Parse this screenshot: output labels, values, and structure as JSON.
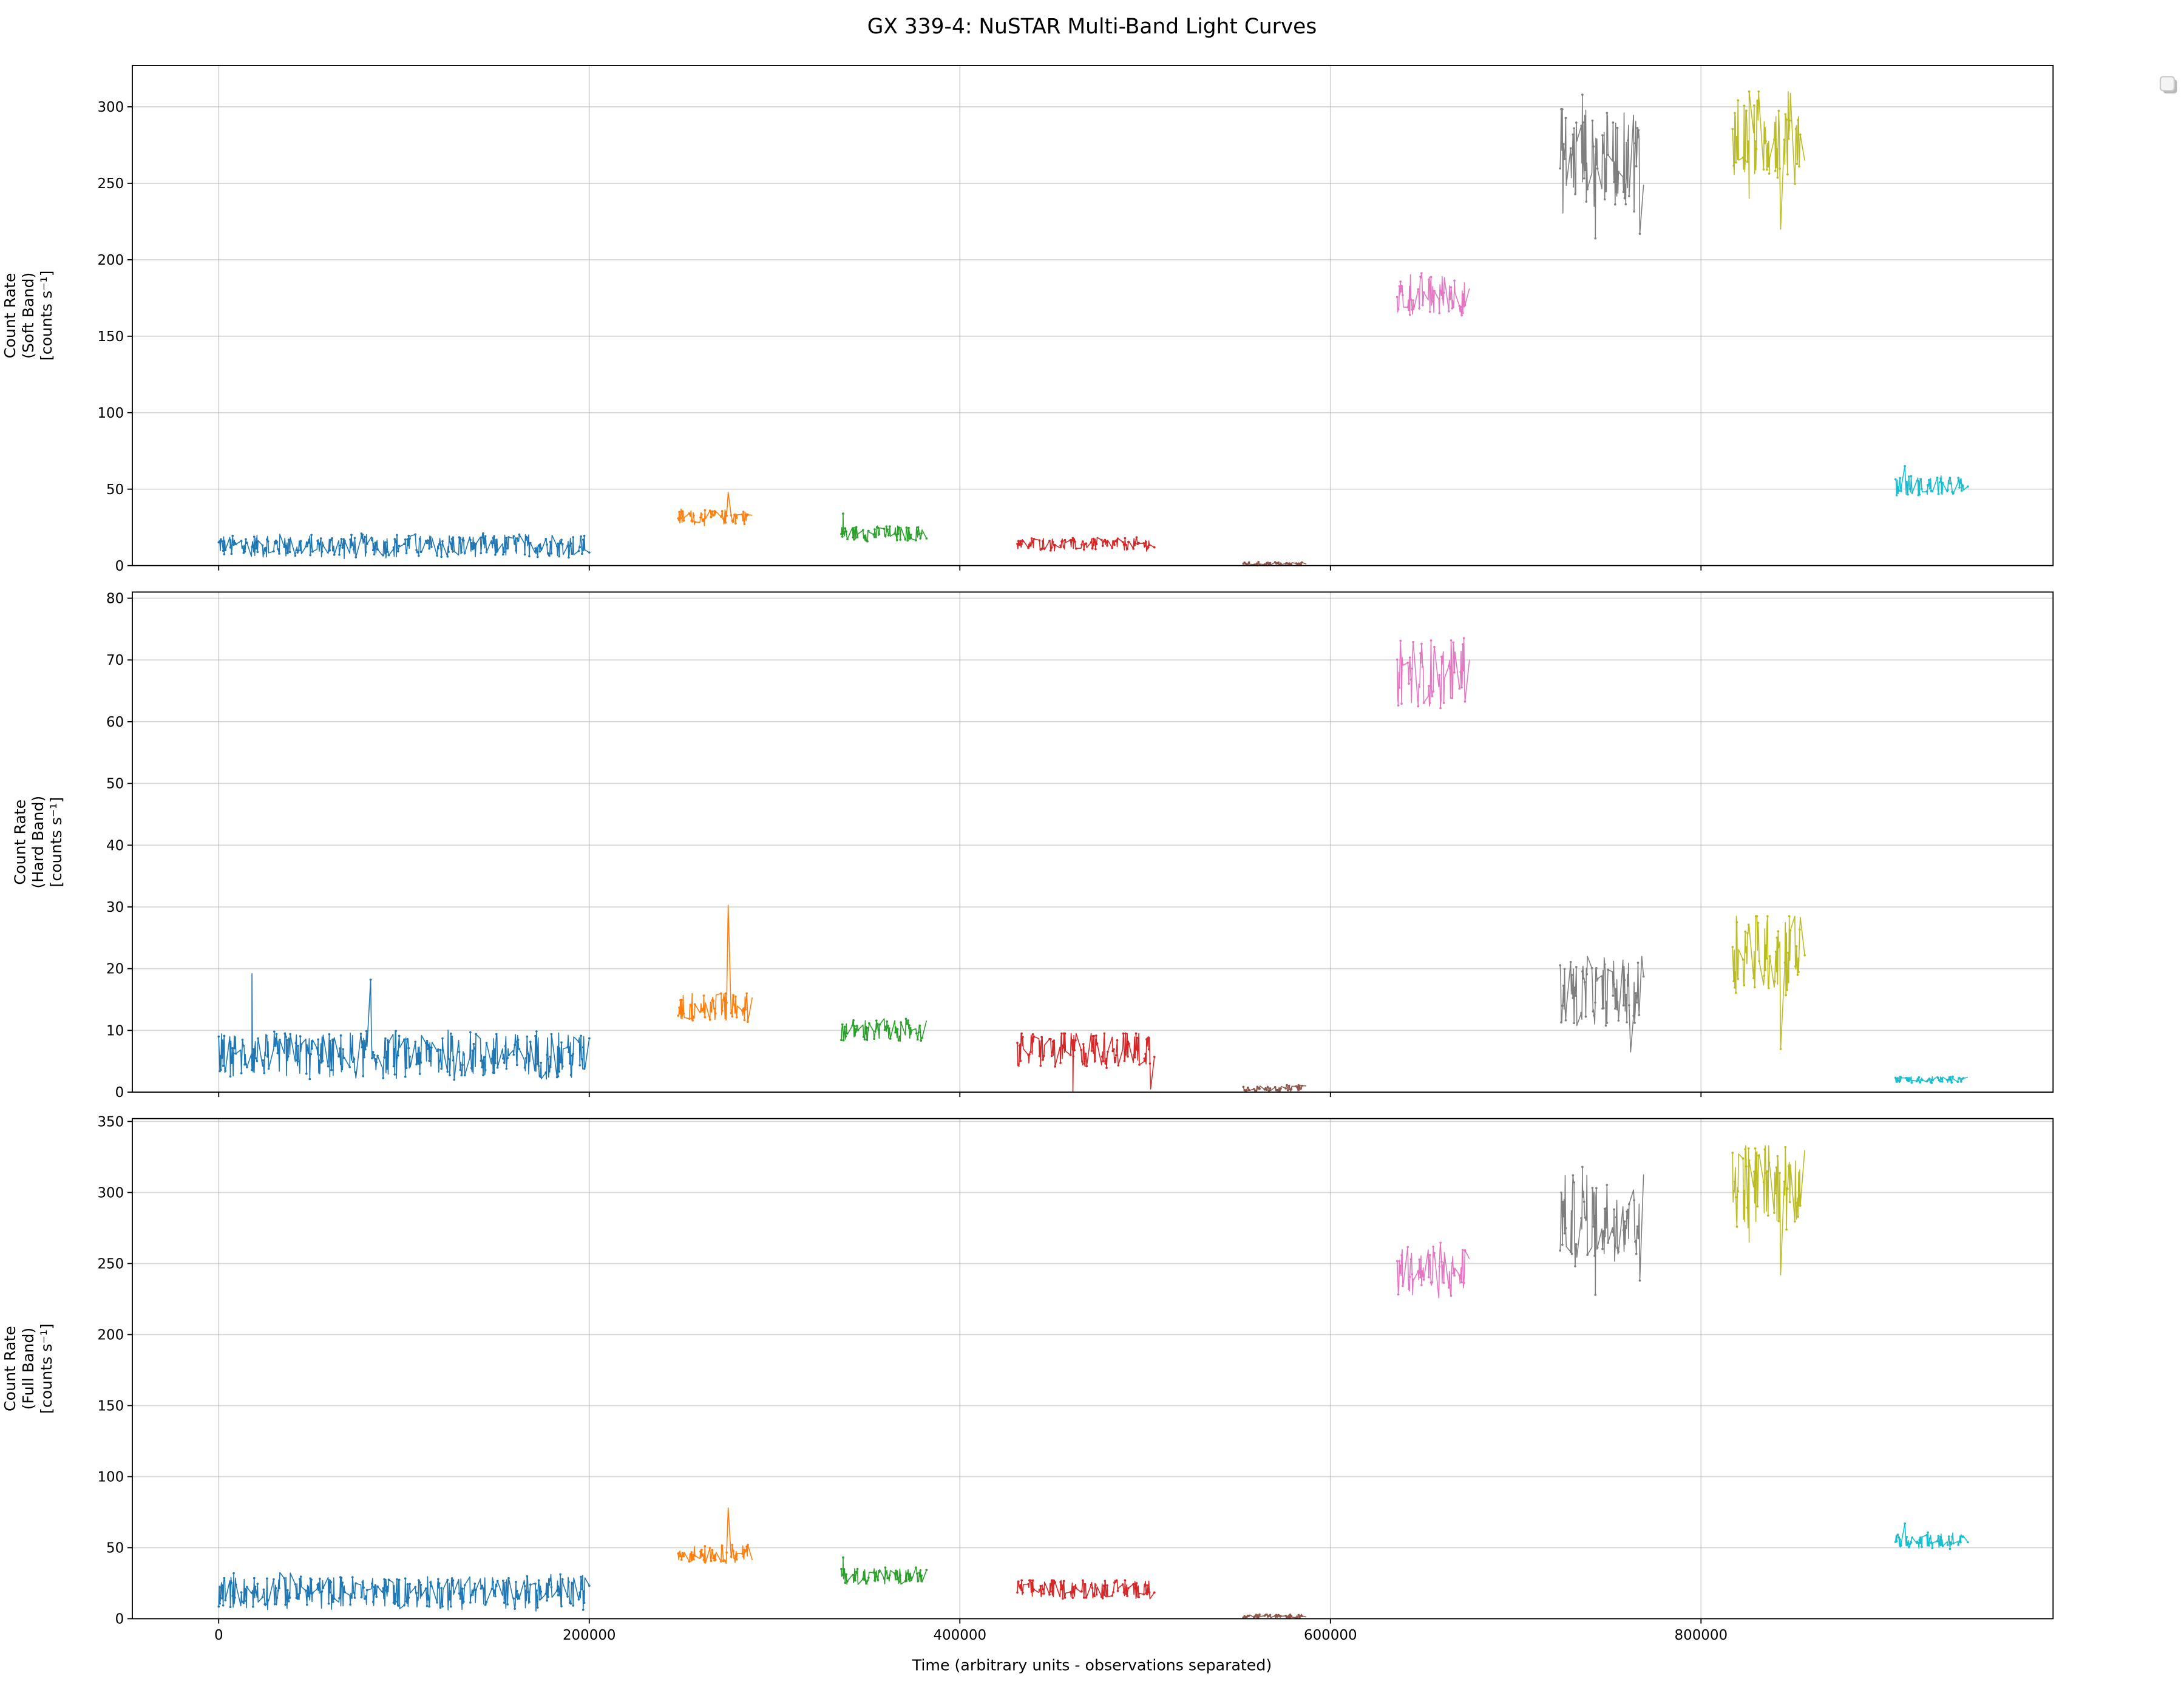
{
  "chart_data": {
    "type": "line",
    "title": "GX 339-4: NuSTAR Multi-Band Light Curves",
    "xlabel": "Time (arbitrary units - observations separated)",
    "xlim": [
      -46600,
      990000
    ],
    "xticks": [
      0,
      200000,
      400000,
      600000,
      800000
    ],
    "xtick_labels": [
      "0",
      "200000",
      "400000",
      "600000",
      "800000"
    ],
    "grid": true,
    "legend": {
      "placement": "outside-top-right",
      "entries": []
    },
    "panels": [
      {
        "band": "soft",
        "ylabel": [
          "Count Rate",
          "(Soft Band)",
          "[counts s⁻¹]"
        ],
        "ylim": [
          0,
          327
        ],
        "yticks": [
          0,
          50,
          100,
          150,
          200,
          250,
          300
        ],
        "ytick_labels": [
          "0",
          "50",
          "100",
          "150",
          "200",
          "250",
          "300"
        ]
      },
      {
        "band": "hard",
        "ylabel": [
          "Count Rate",
          "(Hard Band)",
          "[counts s⁻¹]"
        ],
        "ylim": [
          0,
          81
        ],
        "yticks": [
          0,
          10,
          20,
          30,
          40,
          50,
          60,
          70,
          80
        ],
        "ytick_labels": [
          "0",
          "10",
          "20",
          "30",
          "40",
          "50",
          "60",
          "70",
          "80"
        ]
      },
      {
        "band": "full",
        "ylabel": [
          "Count Rate",
          "(Full Band)",
          "[counts s⁻¹]"
        ],
        "ylim": [
          0,
          352
        ],
        "yticks": [
          0,
          50,
          100,
          150,
          200,
          250,
          300,
          350
        ],
        "ytick_labels": [
          "0",
          "50",
          "100",
          "150",
          "200",
          "250",
          "300",
          "350"
        ]
      }
    ],
    "observations": [
      {
        "id": 1,
        "color": "#1f77b4",
        "t": [
          0,
          200000
        ],
        "soft": {
          "mean": 13,
          "min": 3,
          "max": 25,
          "spikes": []
        },
        "hard": {
          "mean": 6,
          "min": 0,
          "max": 11,
          "spikes": [
            [
              18000,
              19.2
            ],
            [
              82000,
              18.2
            ]
          ]
        },
        "full": {
          "mean": 19,
          "min": 5,
          "max": 40,
          "spikes": []
        }
      },
      {
        "id": 2,
        "color": "#ff7f0e",
        "t": [
          248000,
          288000
        ],
        "soft": {
          "mean": 32,
          "min": 22,
          "max": 37,
          "spikes": [
            [
              275000,
              48
            ]
          ]
        },
        "hard": {
          "mean": 14,
          "min": 8,
          "max": 16,
          "spikes": [
            [
              275000,
              30.3
            ]
          ]
        },
        "full": {
          "mean": 46,
          "min": 32,
          "max": 52,
          "spikes": [
            [
              275000,
              78
            ]
          ]
        }
      },
      {
        "id": 3,
        "color": "#2ca02c",
        "t": [
          336000,
          382000
        ],
        "soft": {
          "mean": 21,
          "min": 11,
          "max": 26,
          "spikes": [
            [
              337000,
              34
            ]
          ]
        },
        "hard": {
          "mean": 10,
          "min": 7,
          "max": 12.5,
          "spikes": []
        },
        "full": {
          "mean": 30,
          "min": 18,
          "max": 36,
          "spikes": [
            [
              337000,
              43
            ]
          ]
        }
      },
      {
        "id": 4,
        "color": "#d62728",
        "t": [
          431000,
          505000
        ],
        "soft": {
          "mean": 14,
          "min": 7,
          "max": 19,
          "spikes": []
        },
        "hard": {
          "mean": 7,
          "min": 0,
          "max": 9.5,
          "spikes": [
            [
              461000,
              0
            ],
            [
              503000,
              0.5
            ]
          ]
        },
        "full": {
          "mean": 21,
          "min": 7,
          "max": 27,
          "spikes": []
        }
      },
      {
        "id": 5,
        "color": "#8c564b",
        "t": [
          553000,
          587000
        ],
        "soft": {
          "mean": 1.2,
          "min": 0,
          "max": 3,
          "spikes": []
        },
        "hard": {
          "mean": 0.6,
          "min": 0,
          "max": 1.4,
          "spikes": []
        },
        "full": {
          "mean": 1.8,
          "min": 0,
          "max": 4,
          "spikes": []
        }
      },
      {
        "id": 6,
        "color": "#e377c2",
        "t": [
          636000,
          675000
        ],
        "soft": {
          "mean": 177,
          "min": 158,
          "max": 200,
          "spikes": []
        },
        "hard": {
          "mean": 68,
          "min": 61,
          "max": 77,
          "spikes": []
        },
        "full": {
          "mean": 245,
          "min": 218,
          "max": 275,
          "spikes": []
        }
      },
      {
        "id": 7,
        "color": "#7f7f7f",
        "t": [
          724000,
          769000
        ],
        "soft": {
          "mean": 267,
          "min": 214,
          "max": 308,
          "spikes": [
            [
              736000,
              308
            ],
            [
              743000,
              214
            ],
            [
              767000,
              217
            ]
          ]
        },
        "hard": {
          "mean": 16,
          "min": 6.5,
          "max": 22,
          "spikes": [
            [
              762000,
              6.5
            ],
            [
              768000,
              22
            ]
          ]
        },
        "full": {
          "mean": 282,
          "min": 228,
          "max": 318,
          "spikes": [
            [
              736000,
              318
            ],
            [
              743000,
              228
            ],
            [
              767000,
              238
            ]
          ]
        }
      },
      {
        "id": 8,
        "color": "#bcbd22",
        "t": [
          817000,
          856000
        ],
        "soft": {
          "mean": 282,
          "min": 220,
          "max": 310,
          "spikes": [
            [
              843000,
              220
            ],
            [
              826000,
              240
            ]
          ]
        },
        "hard": {
          "mean": 23,
          "min": 7,
          "max": 28.5,
          "spikes": [
            [
              843000,
              7
            ]
          ]
        },
        "full": {
          "mean": 307,
          "min": 242,
          "max": 333,
          "spikes": [
            [
              843000,
              242
            ],
            [
              826000,
              265
            ]
          ]
        }
      },
      {
        "id": 9,
        "color": "#17becf",
        "t": [
          905000,
          944000
        ],
        "soft": {
          "mean": 52,
          "min": 46,
          "max": 65,
          "spikes": [
            [
              910000,
              65
            ]
          ]
        },
        "hard": {
          "mean": 2,
          "min": 1.4,
          "max": 3,
          "spikes": []
        },
        "full": {
          "mean": 55,
          "min": 49,
          "max": 67,
          "spikes": [
            [
              910000,
              67
            ]
          ]
        }
      }
    ]
  }
}
